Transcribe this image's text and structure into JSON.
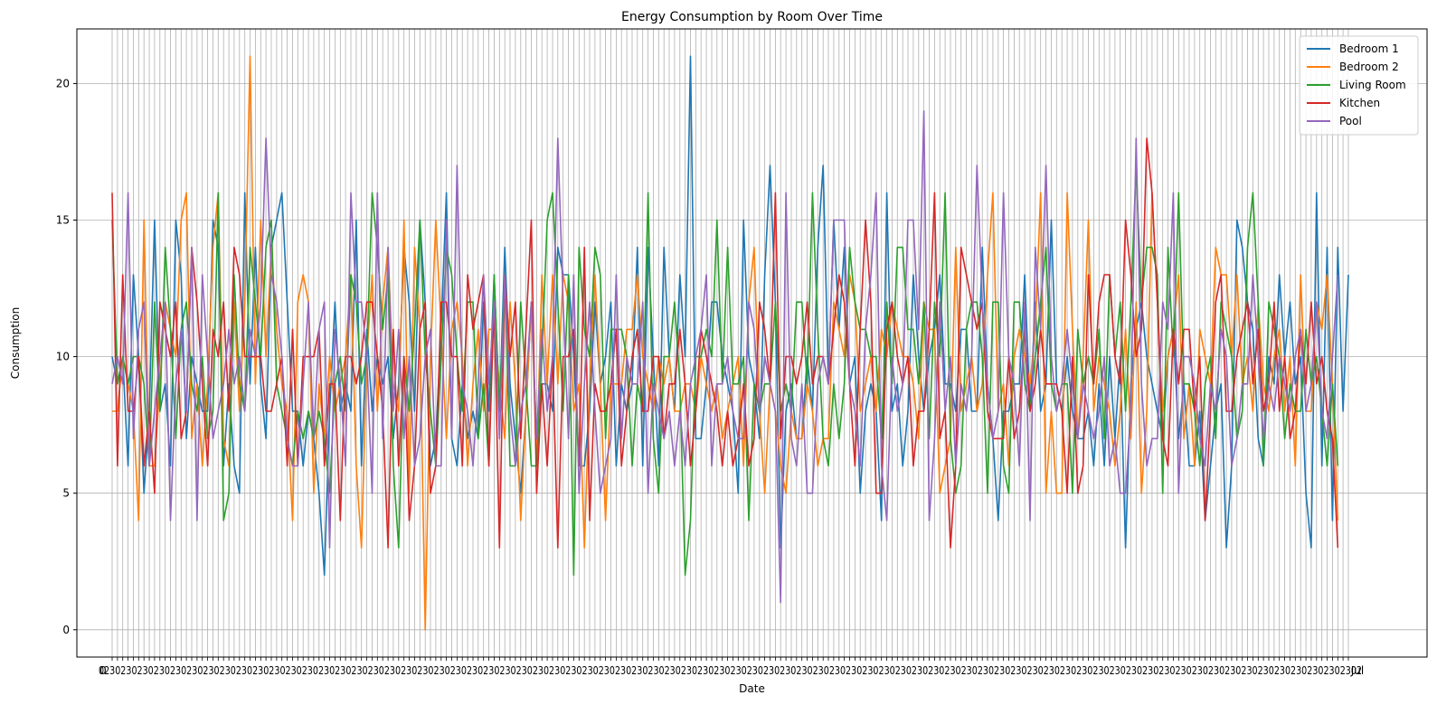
{
  "chart_data": {
    "type": "line",
    "title": "Energy Consumption by Room Over Time",
    "xlabel": "Date",
    "ylabel": "Consumption",
    "ylim": [
      -1,
      22
    ],
    "yticks": [
      0,
      5,
      10,
      15,
      20
    ],
    "grid": true,
    "legend_position": "top-right",
    "x_tick_labels_note": "x tick labels are overlapping date strings and illegible",
    "x_tick_labels": [
      "0",
      "Jul"
    ],
    "series": [
      {
        "name": "Bedroom 1",
        "color": "#1f77b4",
        "values": [
          10,
          9,
          10,
          6,
          13,
          10,
          5,
          8,
          15,
          8,
          9,
          6,
          15,
          13,
          7,
          10,
          9,
          8,
          8,
          15,
          14,
          6,
          9,
          6,
          5,
          16,
          9,
          14,
          9,
          7,
          14,
          15,
          16,
          12,
          8,
          8,
          6,
          8,
          7,
          5,
          2,
          8,
          12,
          8,
          9,
          8,
          15,
          6,
          11,
          8,
          10,
          9,
          10,
          7,
          9,
          14,
          12,
          8,
          15,
          12,
          6,
          7,
          11,
          16,
          7,
          6,
          9,
          7,
          8,
          7,
          12,
          8,
          13,
          8,
          14,
          9,
          7,
          5,
          8,
          12,
          7,
          9,
          9,
          8,
          14,
          13,
          13,
          10,
          6,
          6,
          8,
          12,
          9,
          10,
          12,
          6,
          9,
          8,
          9,
          14,
          6,
          14,
          10,
          6,
          14,
          10,
          8,
          13,
          10,
          21,
          7,
          7,
          9,
          12,
          12,
          10,
          9,
          8,
          5,
          15,
          10,
          9,
          7,
          13,
          17,
          12,
          3,
          8,
          9,
          7,
          7,
          10,
          8,
          14,
          17,
          9,
          15,
          11,
          14,
          9,
          10,
          5,
          8,
          9,
          8,
          4,
          16,
          8,
          9,
          6,
          8,
          13,
          10,
          8,
          10,
          11,
          13,
          9,
          9,
          8,
          11,
          11,
          8,
          8,
          14,
          9,
          7,
          4,
          8,
          8,
          9,
          9,
          13,
          8,
          12,
          8,
          9,
          15,
          9,
          8,
          10,
          8,
          7,
          7,
          8,
          6,
          9,
          6,
          10,
          7,
          10,
          3,
          9,
          11,
          12,
          10,
          9,
          8,
          7,
          10,
          11,
          7,
          9,
          6,
          6,
          8,
          4,
          6,
          8,
          9,
          3,
          6,
          15,
          14,
          12,
          11,
          7,
          6,
          10,
          9,
          13,
          10,
          12,
          9,
          10,
          5,
          3,
          16,
          6,
          14,
          4,
          14,
          8,
          13
        ]
      },
      {
        "name": "Bedroom 2",
        "color": "#ff7f0e",
        "values": [
          8,
          8,
          10,
          9,
          8,
          4,
          15,
          6,
          6,
          9,
          12,
          11,
          10,
          15,
          16,
          7,
          9,
          6,
          9,
          14,
          16,
          7,
          6,
          12,
          8,
          12,
          21,
          9,
          15,
          10,
          14,
          11,
          9,
          8,
          4,
          12,
          13,
          12,
          5,
          9,
          7,
          10,
          8,
          9,
          10,
          13,
          6,
          3,
          10,
          13,
          8,
          12,
          14,
          9,
          8,
          15,
          5,
          14,
          11,
          0,
          10,
          15,
          11,
          7,
          11,
          12,
          10,
          6,
          9,
          11,
          8,
          11,
          11,
          9,
          7,
          12,
          9,
          4,
          8,
          12,
          6,
          13,
          9,
          13,
          9,
          13,
          12,
          8,
          9,
          3,
          9,
          13,
          9,
          4,
          9,
          9,
          9,
          11,
          11,
          13,
          10,
          9,
          8,
          10,
          9,
          10,
          8,
          8,
          9,
          9,
          8,
          10,
          9,
          8,
          9,
          7,
          8,
          9,
          10,
          6,
          12,
          14,
          8,
          5,
          9,
          8,
          6,
          5,
          8,
          7,
          7,
          9,
          8,
          6,
          7,
          7,
          12,
          11,
          10,
          13,
          12,
          8,
          9,
          10,
          8,
          11,
          10,
          12,
          11,
          10,
          10,
          9,
          7,
          12,
          11,
          11,
          5,
          6,
          7,
          14,
          8,
          9,
          10,
          8,
          9,
          13,
          16,
          8,
          9,
          6,
          10,
          11,
          10,
          9,
          11,
          16,
          5,
          8,
          5,
          5,
          16,
          11,
          7,
          10,
          15,
          8,
          10,
          9,
          8,
          6,
          8,
          11,
          7,
          12,
          5,
          8,
          16,
          12,
          8,
          10,
          11,
          13,
          7,
          9,
          6,
          11,
          10,
          9,
          14,
          13,
          13,
          10,
          13,
          9,
          10,
          8,
          12,
          9,
          8,
          10,
          11,
          8,
          10,
          6,
          13,
          8,
          8,
          12,
          11,
          13,
          9,
          4
        ]
      },
      {
        "name": "Living Room",
        "color": "#2ca02c",
        "values": [
          15,
          9,
          10,
          9,
          10,
          10,
          9,
          6,
          12,
          8,
          14,
          11,
          7,
          11,
          12,
          9,
          8,
          10,
          7,
          8,
          16,
          4,
          5,
          13,
          9,
          8,
          14,
          12,
          10,
          14,
          15,
          9,
          8,
          7,
          6,
          8,
          7,
          8,
          7,
          8,
          7,
          5,
          9,
          10,
          8,
          13,
          12,
          9,
          10,
          16,
          14,
          11,
          13,
          6,
          3,
          10,
          8,
          11,
          15,
          10,
          8,
          6,
          10,
          14,
          13,
          10,
          8,
          12,
          12,
          7,
          9,
          6,
          13,
          8,
          13,
          6,
          6,
          12,
          9,
          6,
          6,
          10,
          15,
          16,
          12,
          8,
          13,
          2,
          14,
          11,
          10,
          14,
          13,
          7,
          11,
          11,
          11,
          10,
          6,
          9,
          8,
          16,
          7,
          5,
          10,
          10,
          12,
          9,
          2,
          4,
          10,
          10,
          11,
          10,
          15,
          9,
          14,
          9,
          9,
          10,
          4,
          9,
          8,
          9,
          9,
          12,
          8,
          9,
          8,
          12,
          12,
          9,
          16,
          11,
          7,
          6,
          9,
          7,
          9,
          14,
          12,
          11,
          11,
          10,
          10,
          7,
          12,
          9,
          14,
          14,
          11,
          11,
          9,
          12,
          7,
          12,
          10,
          16,
          7,
          5,
          6,
          11,
          12,
          12,
          10,
          5,
          12,
          12,
          6,
          5,
          12,
          12,
          9,
          8,
          10,
          12,
          14,
          9,
          8,
          9,
          9,
          5,
          11,
          9,
          10,
          9,
          11,
          7,
          13,
          10,
          12,
          8,
          12,
          17,
          12,
          14,
          14,
          13,
          5,
          14,
          10,
          16,
          9,
          9,
          8,
          6,
          9,
          10,
          7,
          12,
          11,
          10,
          7,
          8,
          14,
          16,
          12,
          6,
          12,
          11,
          10,
          7,
          9,
          8,
          8,
          11,
          9,
          10,
          8,
          6,
          9,
          6
        ]
      },
      {
        "name": "Kitchen",
        "color": "#d62728",
        "values": [
          16,
          6,
          13,
          8,
          8,
          10,
          6,
          8,
          5,
          12,
          11,
          10,
          12,
          7,
          8,
          14,
          12,
          9,
          6,
          11,
          10,
          12,
          8,
          14,
          13,
          10,
          10,
          10,
          10,
          8,
          8,
          9,
          10,
          6,
          11,
          6,
          10,
          10,
          10,
          11,
          6,
          9,
          9,
          4,
          10,
          10,
          9,
          10,
          12,
          12,
          10,
          8,
          3,
          11,
          6,
          10,
          4,
          6,
          11,
          12,
          5,
          6,
          12,
          12,
          10,
          10,
          6,
          13,
          11,
          12,
          13,
          6,
          12,
          3,
          13,
          10,
          12,
          7,
          11,
          15,
          5,
          9,
          6,
          10,
          3,
          10,
          10,
          11,
          6,
          14,
          4,
          9,
          8,
          8,
          9,
          11,
          6,
          8,
          10,
          11,
          8,
          8,
          10,
          10,
          7,
          9,
          9,
          11,
          9,
          6,
          8,
          11,
          10,
          9,
          8,
          6,
          8,
          6,
          7,
          9,
          6,
          7,
          12,
          11,
          9,
          16,
          7,
          10,
          10,
          9,
          10,
          12,
          9,
          10,
          10,
          9,
          11,
          13,
          12,
          9,
          6,
          11,
          15,
          12,
          5,
          5,
          11,
          12,
          10,
          9,
          10,
          6,
          8,
          8,
          11,
          16,
          7,
          8,
          3,
          6,
          14,
          13,
          12,
          11,
          12,
          8,
          7,
          7,
          7,
          10,
          7,
          8,
          11,
          8,
          9,
          11,
          9,
          9,
          9,
          8,
          5,
          10,
          5,
          6,
          13,
          9,
          12,
          13,
          13,
          10,
          9,
          15,
          13,
          10,
          11,
          18,
          16,
          12,
          7,
          6,
          11,
          9,
          11,
          11,
          8,
          10,
          4,
          8,
          12,
          13,
          8,
          8,
          10,
          11,
          12,
          9,
          11,
          8,
          9,
          12,
          8,
          10,
          7,
          8,
          11,
          9,
          12,
          9,
          10,
          8,
          7,
          3
        ]
      },
      {
        "name": "Pool",
        "color": "#9467bd",
        "values": [
          9,
          10,
          9,
          16,
          7,
          11,
          12,
          6,
          8,
          10,
          12,
          4,
          9,
          11,
          8,
          14,
          4,
          13,
          10,
          7,
          8,
          9,
          11,
          9,
          10,
          8,
          11,
          10,
          12,
          18,
          13,
          12,
          10,
          7,
          6,
          6,
          9,
          12,
          7,
          11,
          12,
          3,
          11,
          9,
          6,
          16,
          12,
          12,
          10,
          5,
          16,
          7,
          14,
          8,
          11,
          7,
          10,
          6,
          7,
          10,
          11,
          6,
          6,
          15,
          7,
          17,
          9,
          8,
          6,
          9,
          13,
          9,
          12,
          7,
          13,
          8,
          6,
          8,
          9,
          12,
          7,
          11,
          8,
          10,
          18,
          12,
          7,
          13,
          5,
          9,
          12,
          8,
          5,
          6,
          7,
          13,
          7,
          10,
          9,
          9,
          12,
          5,
          9,
          8,
          7,
          8,
          6,
          8,
          6,
          9,
          10,
          11,
          13,
          6,
          9,
          9,
          10,
          8,
          7,
          7,
          12,
          11,
          8,
          10,
          9,
          8,
          1,
          16,
          7,
          6,
          9,
          5,
          5,
          9,
          10,
          9,
          15,
          15,
          15,
          9,
          8,
          6,
          11,
          13,
          16,
          6,
          4,
          10,
          8,
          9,
          15,
          15,
          11,
          19,
          4,
          7,
          12,
          8,
          10,
          6,
          9,
          8,
          10,
          17,
          12,
          9,
          7,
          8,
          16,
          10,
          9,
          6,
          12,
          4,
          14,
          11,
          17,
          10,
          8,
          9,
          11,
          9,
          7,
          9,
          8,
          7,
          8,
          10,
          6,
          7,
          5,
          5,
          8,
          18,
          9,
          6,
          7,
          7,
          12,
          11,
          16,
          5,
          10,
          10,
          9,
          7,
          6,
          9,
          8,
          11,
          10,
          6,
          7,
          9,
          9,
          13,
          10,
          7,
          9,
          8,
          10,
          9,
          8,
          10,
          11,
          8,
          9,
          12,
          8,
          7,
          10,
          13
        ]
      }
    ]
  }
}
